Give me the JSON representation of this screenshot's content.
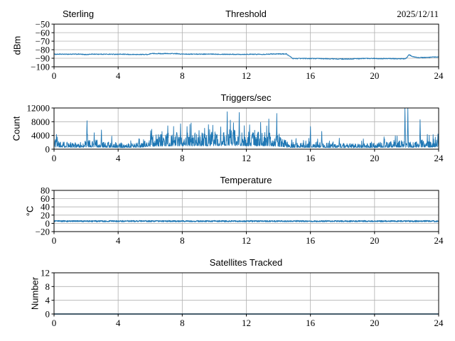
{
  "figure": {
    "background": "#ffffff",
    "line_color": "#1f77b4",
    "grid_color": "#b0b0b0",
    "spine_color": "#000000",
    "text_color": "#000000"
  },
  "chart_data": [
    {
      "type": "line",
      "title_left": "Sterling",
      "title": "Threshold",
      "title_right": "2025/12/11",
      "ylabel": "dBm",
      "xlim": [
        0,
        24
      ],
      "ylim": [
        -100,
        -50
      ],
      "xticks": [
        0,
        4,
        8,
        12,
        16,
        20,
        24
      ],
      "xtick_labels": [
        "0",
        "4",
        "8",
        "12",
        "16",
        "20",
        "24"
      ],
      "yticks": [
        -50,
        -60,
        -70,
        -80,
        -90,
        -100
      ],
      "ytick_labels": [
        "−50",
        "−60",
        "−70",
        "−80",
        "−90",
        "−100"
      ],
      "grid": true,
      "legend": null,
      "series": [
        {
          "name": "threshold_dbm",
          "style": "noisy-line",
          "linewidth": 1.1,
          "noise_amplitude": 0.45,
          "anchors": [
            [
              0,
              -85.3
            ],
            [
              1.6,
              -85.2
            ],
            [
              1.9,
              -85.7
            ],
            [
              2.4,
              -85.2
            ],
            [
              4.2,
              -85.3
            ],
            [
              4.8,
              -85.6
            ],
            [
              5.9,
              -85.5
            ],
            [
              6.05,
              -84.5
            ],
            [
              7.6,
              -84.6
            ],
            [
              7.9,
              -85.1
            ],
            [
              10.2,
              -85.2
            ],
            [
              11.5,
              -85.4
            ],
            [
              13.2,
              -85.3
            ],
            [
              13.6,
              -84.9
            ],
            [
              14.5,
              -84.9
            ],
            [
              14.9,
              -90.3
            ],
            [
              16.2,
              -90.3
            ],
            [
              17.1,
              -90.6
            ],
            [
              18.2,
              -90.9
            ],
            [
              18.9,
              -90.5
            ],
            [
              19.6,
              -90.2
            ],
            [
              20.6,
              -90.4
            ],
            [
              21.5,
              -90.5
            ],
            [
              21.9,
              -90.7
            ],
            [
              22.0,
              -89.6
            ],
            [
              22.15,
              -85.8
            ],
            [
              22.4,
              -88.3
            ],
            [
              22.7,
              -89.2
            ],
            [
              23.3,
              -89.1
            ],
            [
              23.7,
              -88.7
            ],
            [
              24,
              -88.6
            ]
          ]
        }
      ]
    },
    {
      "type": "line",
      "title": "Triggers/sec",
      "ylabel": "Count",
      "xlim": [
        0,
        24
      ],
      "ylim": [
        0,
        12000
      ],
      "xticks": [
        0,
        4,
        8,
        12,
        16,
        20,
        24
      ],
      "xtick_labels": [
        "0",
        "4",
        "8",
        "12",
        "16",
        "20",
        "24"
      ],
      "yticks": [
        0,
        4000,
        8000,
        12000
      ],
      "ytick_labels": [
        "0",
        "4000",
        "8000",
        "12000"
      ],
      "grid": true,
      "legend": null,
      "series": [
        {
          "name": "triggers_per_sec",
          "style": "spiky-noise",
          "linewidth": 0.9,
          "floor": 200,
          "envelope_anchors": [
            [
              0,
              2600
            ],
            [
              1,
              2200
            ],
            [
              1.5,
              1800
            ],
            [
              2,
              3000
            ],
            [
              3,
              2600
            ],
            [
              3.5,
              2000
            ],
            [
              4.5,
              1900
            ],
            [
              5.4,
              2200
            ],
            [
              5.8,
              3800
            ],
            [
              6.5,
              4600
            ],
            [
              7.5,
              4900
            ],
            [
              8.5,
              5100
            ],
            [
              9.5,
              5200
            ],
            [
              10.5,
              5600
            ],
            [
              11,
              6000
            ],
            [
              11.8,
              5400
            ],
            [
              12.5,
              5000
            ],
            [
              13.3,
              5200
            ],
            [
              14,
              4300
            ],
            [
              14.6,
              2100
            ],
            [
              15.5,
              2000
            ],
            [
              16.2,
              2300
            ],
            [
              17,
              1900
            ],
            [
              18,
              1700
            ],
            [
              19,
              1700
            ],
            [
              20,
              1900
            ],
            [
              20.8,
              2400
            ],
            [
              21.4,
              2800
            ],
            [
              22,
              2300
            ],
            [
              22.6,
              2200
            ],
            [
              23,
              2900
            ],
            [
              23.5,
              2700
            ],
            [
              24,
              3400
            ]
          ],
          "spikes": [
            [
              0.15,
              4300
            ],
            [
              2.05,
              8300
            ],
            [
              2.5,
              4800
            ],
            [
              2.95,
              5600
            ],
            [
              3.6,
              3800
            ],
            [
              6.1,
              5800
            ],
            [
              7.1,
              6800
            ],
            [
              7.9,
              7400
            ],
            [
              8.3,
              6600
            ],
            [
              9.4,
              6100
            ],
            [
              9.9,
              7000
            ],
            [
              10.4,
              6500
            ],
            [
              10.8,
              10900
            ],
            [
              11.2,
              7700
            ],
            [
              11.55,
              10700
            ],
            [
              12.2,
              7100
            ],
            [
              12.9,
              7800
            ],
            [
              13.4,
              8800
            ],
            [
              13.9,
              10400
            ],
            [
              15.1,
              3100
            ],
            [
              16.0,
              6600
            ],
            [
              16.7,
              5200
            ],
            [
              17.8,
              3200
            ],
            [
              19.3,
              3000
            ],
            [
              20.6,
              3600
            ],
            [
              21.3,
              3900
            ],
            [
              21.9,
              12800
            ],
            [
              22.08,
              12600
            ],
            [
              22.85,
              8600
            ],
            [
              23.3,
              4300
            ],
            [
              23.95,
              4400
            ]
          ]
        }
      ]
    },
    {
      "type": "line",
      "title": "Temperature",
      "ylabel": "°C",
      "xlim": [
        0,
        24
      ],
      "ylim": [
        -20,
        80
      ],
      "xticks": [
        0,
        4,
        8,
        12,
        16,
        20,
        24
      ],
      "xtick_labels": [
        "0",
        "4",
        "8",
        "12",
        "16",
        "20",
        "24"
      ],
      "yticks": [
        -20,
        0,
        20,
        40,
        60,
        80
      ],
      "ytick_labels": [
        "−20",
        "0",
        "20",
        "40",
        "60",
        "80"
      ],
      "grid": true,
      "legend": null,
      "series": [
        {
          "name": "temperature_c",
          "style": "noisy-line",
          "linewidth": 1.4,
          "noise_amplitude": 1.4,
          "anchors": [
            [
              0,
              5.3
            ],
            [
              24,
              5.3
            ]
          ]
        }
      ]
    },
    {
      "type": "line",
      "title": "Satellites Tracked",
      "ylabel": "Number",
      "xlim": [
        0,
        24
      ],
      "ylim": [
        0,
        12
      ],
      "xticks": [
        0,
        4,
        8,
        12,
        16,
        20,
        24
      ],
      "xtick_labels": [
        "0",
        "4",
        "8",
        "12",
        "16",
        "20",
        "24"
      ],
      "yticks": [
        0,
        4,
        8,
        12
      ],
      "ytick_labels": [
        "0",
        "4",
        "8",
        "12"
      ],
      "grid": true,
      "legend": null,
      "series": [
        {
          "name": "satellites_tracked",
          "style": "noisy-line",
          "linewidth": 1.4,
          "noise_amplitude": 0,
          "anchors": [
            [
              0,
              0
            ],
            [
              24,
              0
            ]
          ]
        }
      ]
    }
  ]
}
